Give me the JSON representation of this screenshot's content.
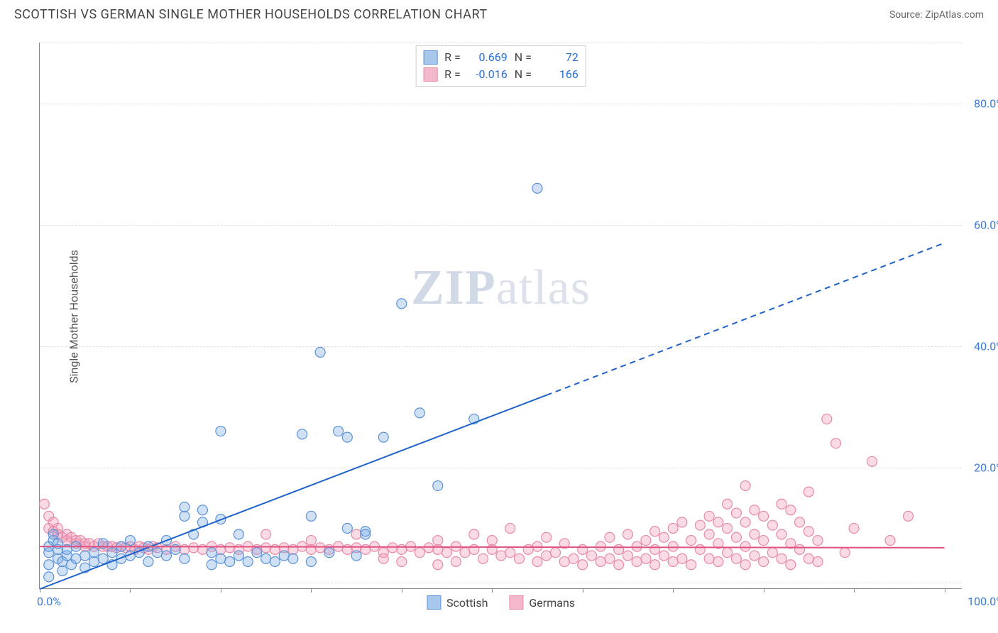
{
  "header": {
    "title": "SCOTTISH VS GERMAN SINGLE MOTHER HOUSEHOLDS CORRELATION CHART",
    "source_label": "Source:",
    "source_name": "ZipAtlas.com"
  },
  "watermark": {
    "zip": "ZIP",
    "atlas": "atlas"
  },
  "chart": {
    "type": "scatter",
    "ylabel": "Single Mother Households",
    "xlim": [
      0,
      102
    ],
    "ylim": [
      0,
      90
    ],
    "xtick_positions": [
      0,
      10,
      20,
      30,
      40,
      50,
      60,
      70,
      80,
      90,
      100
    ],
    "xtick_labels": [
      "0.0%",
      "",
      "",
      "",
      "",
      "",
      "",
      "",
      "",
      "",
      "100.0%"
    ],
    "ytick_positions": [
      20,
      40,
      60,
      80
    ],
    "ytick_labels": [
      "20.0%",
      "40.0%",
      "60.0%",
      "80.0%"
    ],
    "gridline_positions": [
      1,
      20,
      40,
      60,
      80,
      90
    ],
    "background_color": "#ffffff",
    "grid_color": "rgba(0,0,0,0.12)",
    "axis_color": "#888888",
    "label_color": "#3b7bd6",
    "marker_radius": 7,
    "marker_stroke_width": 1.2,
    "series": [
      {
        "name": "Scottish",
        "fill": "rgba(120,170,230,0.35)",
        "stroke": "#5b93d6",
        "swatch_fill": "#a7c7ec",
        "swatch_border": "#5b93d6",
        "R": "0.669",
        "N": "72",
        "trend": {
          "x1": 0,
          "y1": 0,
          "x2": 100,
          "y2": 57,
          "solid_until_x": 56,
          "color": "#1e62c9",
          "width": 2
        },
        "points": [
          [
            1,
            2
          ],
          [
            1,
            4
          ],
          [
            1,
            6
          ],
          [
            1,
            7
          ],
          [
            1.5,
            8
          ],
          [
            1.5,
            9
          ],
          [
            2,
            5
          ],
          [
            2,
            6.5
          ],
          [
            2,
            7.5
          ],
          [
            2.5,
            3
          ],
          [
            2.5,
            4.5
          ],
          [
            3,
            5.5
          ],
          [
            3,
            6.5
          ],
          [
            3.5,
            4
          ],
          [
            4,
            5
          ],
          [
            4,
            7
          ],
          [
            5,
            3.5
          ],
          [
            5,
            5.5
          ],
          [
            6,
            4.5
          ],
          [
            6,
            6
          ],
          [
            7,
            5
          ],
          [
            7,
            7.5
          ],
          [
            8,
            4
          ],
          [
            8,
            6
          ],
          [
            9,
            5
          ],
          [
            9,
            7
          ],
          [
            10,
            5.5
          ],
          [
            10,
            8
          ],
          [
            11,
            6
          ],
          [
            12,
            4.5
          ],
          [
            12,
            7
          ],
          [
            13,
            6
          ],
          [
            14,
            5.5
          ],
          [
            14,
            8
          ],
          [
            15,
            6.5
          ],
          [
            16,
            5
          ],
          [
            16,
            12
          ],
          [
            16,
            13.5
          ],
          [
            17,
            9
          ],
          [
            18,
            11
          ],
          [
            18,
            13
          ],
          [
            19,
            4
          ],
          [
            19,
            6
          ],
          [
            20,
            5
          ],
          [
            20,
            11.5
          ],
          [
            20,
            26
          ],
          [
            21,
            4.5
          ],
          [
            22,
            5.5
          ],
          [
            22,
            9
          ],
          [
            23,
            4.5
          ],
          [
            24,
            6
          ],
          [
            25,
            5
          ],
          [
            26,
            4.5
          ],
          [
            27,
            5.5
          ],
          [
            28,
            5
          ],
          [
            29,
            25.5
          ],
          [
            30,
            4.5
          ],
          [
            31,
            39
          ],
          [
            32,
            6
          ],
          [
            33,
            26
          ],
          [
            34,
            10
          ],
          [
            34,
            25
          ],
          [
            35,
            5.5
          ],
          [
            36,
            9.5
          ],
          [
            38,
            25
          ],
          [
            40,
            47
          ],
          [
            42,
            29
          ],
          [
            44,
            17
          ],
          [
            48,
            28
          ],
          [
            55,
            66
          ],
          [
            36,
            9
          ],
          [
            30,
            12
          ]
        ]
      },
      {
        "name": "Germans",
        "fill": "rgba(240,150,180,0.35)",
        "stroke": "#e68aa8",
        "swatch_fill": "#f4b8cc",
        "swatch_border": "#e68aa8",
        "R": "-0.016",
        "N": "166",
        "trend": {
          "x1": 0,
          "y1": 7,
          "x2": 100,
          "y2": 6.8,
          "solid_until_x": 100,
          "color": "#e0517f",
          "width": 2
        },
        "points": [
          [
            0.5,
            14
          ],
          [
            1,
            12
          ],
          [
            1,
            10
          ],
          [
            1.5,
            11
          ],
          [
            1.5,
            9.5
          ],
          [
            2,
            10
          ],
          [
            2,
            9
          ],
          [
            2.5,
            8.5
          ],
          [
            3,
            9
          ],
          [
            3,
            8
          ],
          [
            3.5,
            8.5
          ],
          [
            4,
            8
          ],
          [
            4,
            7.5
          ],
          [
            4.5,
            8
          ],
          [
            5,
            7.5
          ],
          [
            5,
            7
          ],
          [
            5.5,
            7.5
          ],
          [
            6,
            7
          ],
          [
            6.5,
            7.5
          ],
          [
            7,
            7
          ],
          [
            7.5,
            7
          ],
          [
            8,
            7
          ],
          [
            8.5,
            6.8
          ],
          [
            9,
            7
          ],
          [
            9.5,
            6.8
          ],
          [
            10,
            7
          ],
          [
            10.5,
            6.5
          ],
          [
            11,
            7
          ],
          [
            11.5,
            6.8
          ],
          [
            12,
            6.5
          ],
          [
            12.5,
            7
          ],
          [
            13,
            6.8
          ],
          [
            14,
            6.5
          ],
          [
            15,
            7
          ],
          [
            16,
            6.5
          ],
          [
            17,
            6.8
          ],
          [
            18,
            6.5
          ],
          [
            19,
            7
          ],
          [
            20,
            6.5
          ],
          [
            21,
            6.8
          ],
          [
            22,
            6.5
          ],
          [
            23,
            7
          ],
          [
            24,
            6.5
          ],
          [
            25,
            6.8
          ],
          [
            26,
            6.5
          ],
          [
            27,
            6.8
          ],
          [
            28,
            6.5
          ],
          [
            29,
            7
          ],
          [
            30,
            6.5
          ],
          [
            31,
            6.8
          ],
          [
            32,
            6.5
          ],
          [
            33,
            7
          ],
          [
            34,
            6.5
          ],
          [
            35,
            6.8
          ],
          [
            36,
            6.5
          ],
          [
            37,
            7
          ],
          [
            38,
            6
          ],
          [
            39,
            6.8
          ],
          [
            40,
            6.5
          ],
          [
            41,
            7
          ],
          [
            42,
            6
          ],
          [
            43,
            6.8
          ],
          [
            44,
            6.5
          ],
          [
            44,
            8
          ],
          [
            45,
            6
          ],
          [
            46,
            4.5
          ],
          [
            46,
            7
          ],
          [
            47,
            6
          ],
          [
            48,
            6.5
          ],
          [
            49,
            5
          ],
          [
            50,
            6.5
          ],
          [
            50,
            8
          ],
          [
            51,
            5.5
          ],
          [
            52,
            6
          ],
          [
            53,
            5
          ],
          [
            54,
            6.5
          ],
          [
            55,
            4.5
          ],
          [
            55,
            7
          ],
          [
            56,
            5.5
          ],
          [
            57,
            6
          ],
          [
            58,
            4.5
          ],
          [
            58,
            7.5
          ],
          [
            59,
            5
          ],
          [
            60,
            4
          ],
          [
            60,
            6.5
          ],
          [
            61,
            5.5
          ],
          [
            62,
            4.5
          ],
          [
            62,
            7
          ],
          [
            63,
            5
          ],
          [
            63,
            8.5
          ],
          [
            64,
            4
          ],
          [
            64,
            6.5
          ],
          [
            65,
            5.5
          ],
          [
            65,
            9
          ],
          [
            66,
            4.5
          ],
          [
            66,
            7
          ],
          [
            67,
            5
          ],
          [
            67,
            8
          ],
          [
            68,
            4
          ],
          [
            68,
            6.5
          ],
          [
            68,
            9.5
          ],
          [
            69,
            5.5
          ],
          [
            69,
            8.5
          ],
          [
            70,
            4.5
          ],
          [
            70,
            7
          ],
          [
            70,
            10
          ],
          [
            71,
            5
          ],
          [
            71,
            11
          ],
          [
            72,
            4
          ],
          [
            72,
            8
          ],
          [
            73,
            6.5
          ],
          [
            73,
            10.5
          ],
          [
            74,
            5
          ],
          [
            74,
            9
          ],
          [
            74,
            12
          ],
          [
            75,
            4.5
          ],
          [
            75,
            7.5
          ],
          [
            75,
            11
          ],
          [
            76,
            6
          ],
          [
            76,
            10
          ],
          [
            76,
            14
          ],
          [
            77,
            5
          ],
          [
            77,
            8.5
          ],
          [
            77,
            12.5
          ],
          [
            78,
            4
          ],
          [
            78,
            7
          ],
          [
            78,
            11
          ],
          [
            78,
            17
          ],
          [
            79,
            5.5
          ],
          [
            79,
            9
          ],
          [
            79,
            13
          ],
          [
            80,
            4.5
          ],
          [
            80,
            8
          ],
          [
            80,
            12
          ],
          [
            81,
            6
          ],
          [
            81,
            10.5
          ],
          [
            82,
            5
          ],
          [
            82,
            9
          ],
          [
            82,
            14
          ],
          [
            83,
            4
          ],
          [
            83,
            7.5
          ],
          [
            83,
            13
          ],
          [
            84,
            6.5
          ],
          [
            84,
            11
          ],
          [
            85,
            5
          ],
          [
            85,
            9.5
          ],
          [
            85,
            16
          ],
          [
            86,
            4.5
          ],
          [
            86,
            8
          ],
          [
            87,
            28
          ],
          [
            88,
            24
          ],
          [
            89,
            6
          ],
          [
            90,
            10
          ],
          [
            92,
            21
          ],
          [
            94,
            8
          ],
          [
            96,
            12
          ],
          [
            48,
            9
          ],
          [
            52,
            10
          ],
          [
            56,
            8.5
          ],
          [
            30,
            8
          ],
          [
            35,
            9
          ],
          [
            40,
            4.5
          ],
          [
            44,
            4
          ],
          [
            38,
            5
          ],
          [
            25,
            9
          ]
        ]
      }
    ],
    "legend_bottom": [
      {
        "label": "Scottish",
        "fill": "#a7c7ec",
        "border": "#5b93d6"
      },
      {
        "label": "Germans",
        "fill": "#f4b8cc",
        "border": "#e68aa8"
      }
    ]
  }
}
